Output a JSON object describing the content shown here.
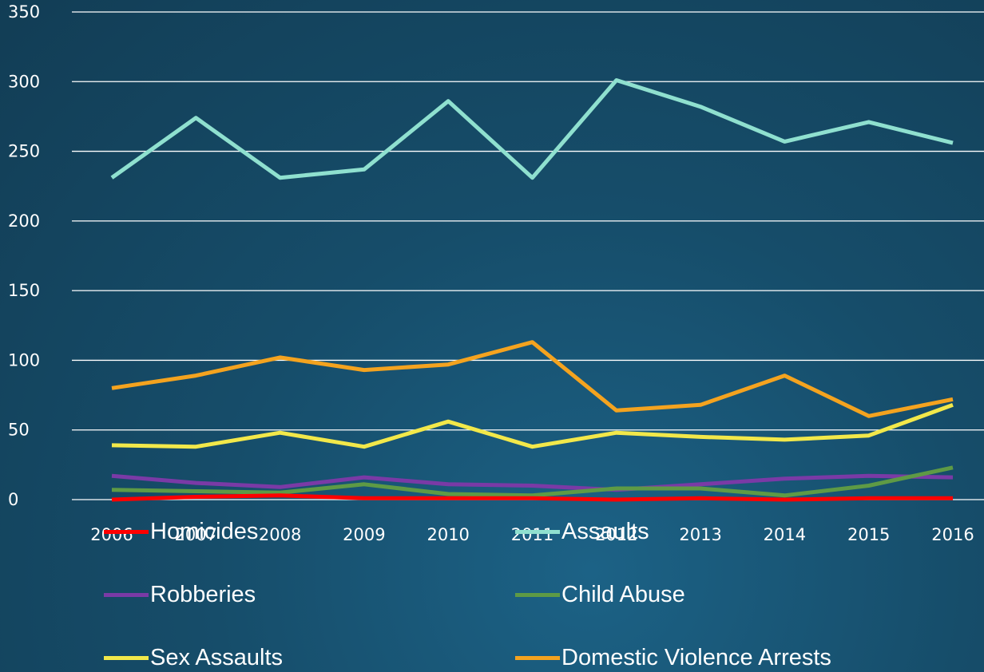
{
  "chart_data": {
    "type": "line",
    "categories": [
      "2006",
      "2007",
      "2008",
      "2009",
      "2010",
      "2011",
      "2012",
      "2013",
      "2014",
      "2015",
      "2016"
    ],
    "ylim": [
      0,
      350
    ],
    "yticks": [
      "0",
      "50",
      "100",
      "150",
      "200",
      "250",
      "300",
      "350"
    ],
    "grid": true,
    "legend_position": "bottom",
    "series": [
      {
        "name": "Homicides",
        "color": "#ff0000",
        "values": [
          0,
          2,
          3,
          1,
          1,
          1,
          0,
          1,
          0,
          1,
          1
        ]
      },
      {
        "name": "Assaults",
        "color": "#8fe0cf",
        "values": [
          231,
          274,
          231,
          237,
          286,
          231,
          301,
          282,
          257,
          271,
          256
        ]
      },
      {
        "name": "Robberies",
        "color": "#7a3aa6",
        "values": [
          17,
          12,
          9,
          16,
          11,
          10,
          7,
          11,
          15,
          17,
          16
        ]
      },
      {
        "name": "Child Abuse",
        "color": "#5e9a45",
        "values": [
          7,
          6,
          5,
          11,
          4,
          3,
          8,
          8,
          3,
          10,
          23
        ]
      },
      {
        "name": "Sex Assaults",
        "color": "#f2e84a",
        "values": [
          39,
          38,
          48,
          38,
          56,
          38,
          48,
          45,
          43,
          46,
          68
        ]
      },
      {
        "name": "Domestic Violence Arrests",
        "color": "#f4a31f",
        "values": [
          80,
          89,
          102,
          93,
          97,
          113,
          64,
          68,
          89,
          60,
          72
        ]
      }
    ]
  }
}
